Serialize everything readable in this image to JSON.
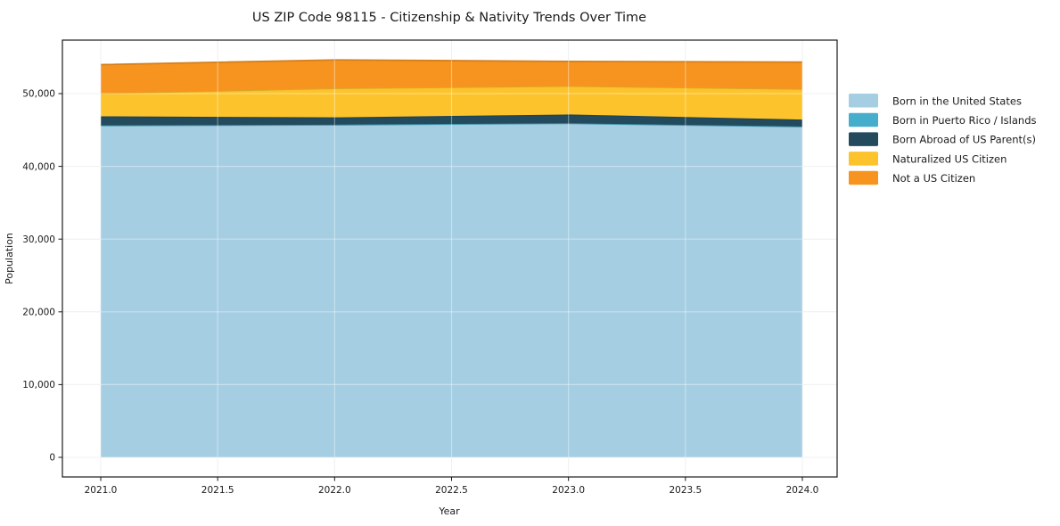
{
  "chart_data": {
    "type": "area",
    "stacked": true,
    "title": "US ZIP Code 98115 - Citizenship & Nativity Trends Over Time",
    "xlabel": "Year",
    "ylabel": "Population",
    "x": [
      2021,
      2022,
      2023,
      2024
    ],
    "series": [
      {
        "name": "Born in the United States",
        "color": "#a5cee3",
        "values": [
          45600,
          45700,
          45900,
          45450
        ]
      },
      {
        "name": "Born in Puerto Rico / Islands",
        "color": "#46aecd",
        "values": [
          30,
          30,
          30,
          30
        ]
      },
      {
        "name": "Born Abroad of US Parent(s)",
        "color": "#234b5d",
        "values": [
          1250,
          1000,
          1200,
          950
        ]
      },
      {
        "name": "Naturalized US Citizen",
        "color": "#fcc32c",
        "values": [
          3150,
          4000,
          3900,
          4200
        ]
      },
      {
        "name": "Not a US Citizen",
        "color": "#f79420",
        "values": [
          3950,
          3900,
          3400,
          3700
        ]
      }
    ],
    "totals": [
      53980,
      54630,
      54430,
      54330
    ],
    "xticks": [
      "2021.0",
      "2021.5",
      "2022.0",
      "2022.5",
      "2023.0",
      "2023.5",
      "2024.0"
    ],
    "yticks": [
      "0",
      "10,000",
      "20,000",
      "30,000",
      "40,000",
      "50,000"
    ],
    "xlim": [
      2020.84,
      2024.15
    ],
    "ylim": [
      -2730,
      57360
    ],
    "grid": true,
    "legend_position": "right"
  },
  "style": {
    "background": "#ffffff",
    "text_color": "#1a1a1a",
    "grid_color": "#e7e7e7",
    "spine_color": "#1a1a1a"
  }
}
